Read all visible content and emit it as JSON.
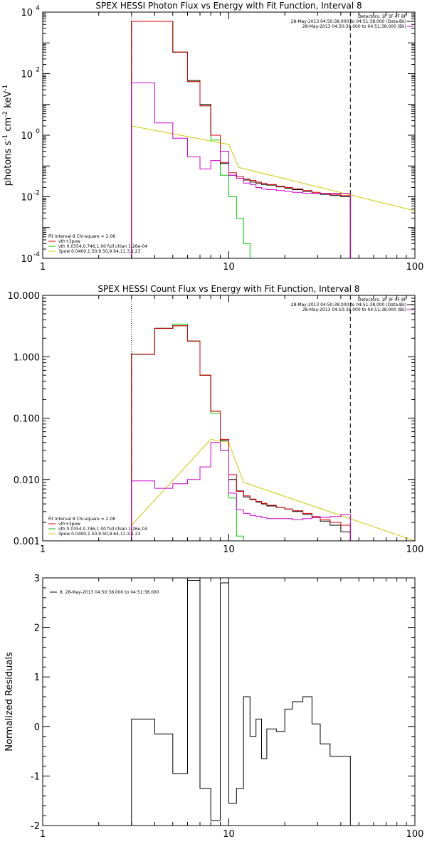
{
  "chart_data": [
    {
      "type": "line",
      "title": "SPEX HESSI Photon Flux vs Energy with Fit Function, Interval 8",
      "ylabel_parts": [
        "photons s",
        "-1",
        " cm",
        "-2",
        " keV",
        "-1"
      ],
      "xscale": "log",
      "yscale": "log",
      "xlim": [
        1,
        100
      ],
      "ylim": [
        0.0001,
        10000
      ],
      "x_ticks": [
        {
          "v": 1,
          "label": "1"
        },
        {
          "v": 10,
          "label": "10"
        },
        {
          "v": 100,
          "label": "100"
        }
      ],
      "y_ticks": [
        {
          "v": 0.0001,
          "base": "10",
          "exp": "-4"
        },
        {
          "v": 0.01,
          "base": "10",
          "exp": "-2"
        },
        {
          "v": 1,
          "base": "10",
          "exp": "0"
        },
        {
          "v": 100,
          "base": "10",
          "exp": "2"
        },
        {
          "v": 10000,
          "base": "10",
          "exp": "4"
        }
      ],
      "vlines": [
        {
          "x": 3.0,
          "style": "dotted"
        },
        {
          "x": 45,
          "style": "dashed"
        }
      ],
      "legend_top": [
        {
          "text": "Detectors: 1F 3F 4F 8F",
          "color": "#000000",
          "line": false
        },
        {
          "text": "28-May-2013 04:50:38.000 to 04:51:38.000 (Data-Bk)",
          "color": "#000000",
          "line": true
        },
        {
          "text": "28-May-2013 04:50:38.000 to 04:51:38.000 (Bk)",
          "color": "#d000d0",
          "line": true
        }
      ],
      "legend_bottom": [
        {
          "text": "Fit Interval 8   Chi-square = 2.06",
          "color": "#000000",
          "line": false
        },
        {
          "text": "vth+3pow",
          "color": "#dd0000",
          "line": true
        },
        {
          "text": "vth 0.0354,0.746,1.00  full chian 1.26e-04",
          "color": "#00cc00",
          "line": true
        },
        {
          "text": "3pow 0.0400,1.50,9.50,9.64,11.3,1.23",
          "color": "#cccc00",
          "line": true
        }
      ],
      "edges": [
        3.0,
        4.0,
        5.0,
        6.0,
        7.0,
        8.0,
        9.0,
        10.0,
        11.0,
        12.0,
        13.0,
        14.0,
        15.0,
        16.0,
        18.0,
        20.0,
        22.0,
        25.0,
        28.0,
        31.0,
        35.0,
        40.0,
        45.0
      ],
      "series": [
        {
          "name": "Data-Bk",
          "color": "#000000",
          "values": [
            5000,
            5000,
            500,
            60,
            10,
            1.0,
            0.12,
            0.05,
            0.04,
            0.035,
            0.03,
            0.028,
            0.025,
            0.024,
            0.021,
            0.019,
            0.017,
            0.015,
            0.013,
            0.012,
            0.011,
            0.01
          ]
        },
        {
          "name": "vth+3pow",
          "color": "#dd0000",
          "values": [
            5000,
            5000,
            500,
            55,
            9,
            1.0,
            0.13,
            0.06,
            0.045,
            0.038,
            0.034,
            0.03,
            0.027,
            0.025,
            0.022,
            0.02,
            0.018,
            0.016,
            0.014,
            0.013,
            0.012,
            0.011
          ]
        },
        {
          "name": "Bk",
          "color": "#d000d0",
          "values": [
            50,
            2.5,
            0.8,
            0.2,
            0.08,
            0.15,
            0.3,
            0.05,
            0.04,
            0.028,
            0.025,
            0.02,
            0.018,
            0.017,
            0.016,
            0.015,
            0.014,
            0.013,
            0.013,
            0.013,
            0.013,
            0.013
          ]
        }
      ],
      "series_smooth": [
        {
          "name": "vth",
          "color": "#00cc00",
          "edges": [
            3.0,
            4.0,
            5.0,
            6.0,
            7.0,
            8.0,
            9.0,
            10.0,
            11.0,
            12.0,
            13.0,
            14.0
          ],
          "values": [
            5000,
            5000,
            500,
            55,
            9,
            0.7,
            0.05,
            0.01,
            0.002,
            0.0003,
            5e-05
          ]
        },
        {
          "name": "3pow",
          "color": "#cccc00",
          "edges": [
            3.0,
            100.0
          ],
          "curve": "powerlaw",
          "points": [
            [
              3.0,
              2.0
            ],
            [
              10.0,
              0.5
            ],
            [
              11.3,
              0.09
            ],
            [
              100,
              0.0035
            ]
          ]
        }
      ]
    },
    {
      "type": "line",
      "title": "SPEX HESSI Count Flux vs Energy with Fit Function, Interval 8",
      "ylabel_parts": [],
      "xscale": "log",
      "yscale": "log",
      "xlim": [
        1,
        100
      ],
      "ylim": [
        0.001,
        10
      ],
      "x_ticks": [
        {
          "v": 1,
          "label": "1"
        },
        {
          "v": 10,
          "label": "10"
        },
        {
          "v": 100,
          "label": "100"
        }
      ],
      "y_ticks": [
        {
          "v": 0.001,
          "label": "0.001"
        },
        {
          "v": 0.01,
          "label": "0.010"
        },
        {
          "v": 0.1,
          "label": "0.100"
        },
        {
          "v": 1,
          "label": "1.000"
        },
        {
          "v": 10,
          "label": "10.000"
        }
      ],
      "vlines": [
        {
          "x": 3.0,
          "style": "dotted"
        },
        {
          "x": 45,
          "style": "dashed"
        }
      ],
      "legend_top": [
        {
          "text": "Detectors: 1F 3F 4F 8F",
          "color": "#000000",
          "line": false
        },
        {
          "text": "28-May-2013 04:50:38.000 to 04:51:38.000 (Data-Bk)",
          "color": "#000000",
          "line": true
        },
        {
          "text": "28-May-2013 04:50:38.000 to 04:51:38.000 (Bk)",
          "color": "#d000d0",
          "line": true
        }
      ],
      "legend_bottom": [
        {
          "text": "Fit Interval 8   Chi-square = 2.06",
          "color": "#000000",
          "line": false
        },
        {
          "text": "vth+3pow",
          "color": "#dd0000",
          "line": true
        },
        {
          "text": "vth 0.0354,0.746,1.00  full chian 1.26e-04",
          "color": "#00cc00",
          "line": true
        },
        {
          "text": "3pow 0.0400,1.50,9.50,9.64,11.3,1.23",
          "color": "#cccc00",
          "line": true
        }
      ],
      "edges": [
        3.0,
        4.0,
        5.0,
        6.0,
        7.0,
        8.0,
        9.0,
        10.0,
        11.0,
        12.0,
        13.0,
        14.0,
        15.0,
        16.0,
        18.0,
        20.0,
        22.0,
        25.0,
        28.0,
        31.0,
        35.0,
        40.0,
        45.0
      ],
      "series": [
        {
          "name": "Data-Bk",
          "color": "#000000",
          "values": [
            1.1,
            2.9,
            3.2,
            1.8,
            0.5,
            0.13,
            0.043,
            0.01,
            0.0065,
            0.0052,
            0.0047,
            0.0043,
            0.004,
            0.0037,
            0.0035,
            0.0033,
            0.003,
            0.0027,
            0.0024,
            0.0021,
            0.0018,
            0.0014
          ]
        },
        {
          "name": "vth+3pow",
          "color": "#dd0000",
          "values": [
            1.1,
            2.9,
            3.2,
            1.8,
            0.5,
            0.13,
            0.045,
            0.012,
            0.0064,
            0.0054,
            0.0048,
            0.0044,
            0.0041,
            0.0038,
            0.0035,
            0.0033,
            0.0031,
            0.0028,
            0.0025,
            0.0022,
            0.002,
            0.0018
          ]
        },
        {
          "name": "Bk",
          "color": "#d000d0",
          "values": [
            0.0095,
            0.0072,
            0.0085,
            0.01,
            0.016,
            0.04,
            0.03,
            0.006,
            0.0032,
            0.0028,
            0.0026,
            0.0025,
            0.0024,
            0.0023,
            0.0023,
            0.0023,
            0.0022,
            0.0023,
            0.0024,
            0.0024,
            0.0025,
            0.0027
          ]
        }
      ],
      "series_smooth": [
        {
          "name": "vth",
          "color": "#00cc00",
          "edges": [
            3.0,
            4.0,
            5.0,
            6.0,
            7.0,
            8.0,
            9.0,
            10.0,
            11.0,
            12.0
          ],
          "values": [
            1.1,
            2.9,
            3.4,
            1.8,
            0.5,
            0.12,
            0.03,
            0.005,
            0.0012
          ]
        },
        {
          "name": "3pow",
          "color": "#cccc00",
          "edges": [
            3.0,
            100.0
          ],
          "curve": "powerlaw",
          "points": [
            [
              3.0,
              0.0018
            ],
            [
              8.0,
              0.045
            ],
            [
              10.0,
              0.04
            ],
            [
              12,
              0.009
            ],
            [
              100,
              0.001
            ]
          ]
        }
      ]
    },
    {
      "type": "line",
      "title": "",
      "ylabel": "Normalized Residuals",
      "xscale": "log",
      "yscale": "linear",
      "xlim": [
        1,
        100
      ],
      "ylim": [
        -2,
        3
      ],
      "x_ticks": [
        {
          "v": 1,
          "label": "1"
        },
        {
          "v": 10,
          "label": "10"
        },
        {
          "v": 100,
          "label": "100"
        }
      ],
      "y_ticks": [
        {
          "v": -2,
          "label": "-2"
        },
        {
          "v": -1,
          "label": "-1"
        },
        {
          "v": 0,
          "label": "0"
        },
        {
          "v": 1,
          "label": "1"
        },
        {
          "v": 2,
          "label": "2"
        },
        {
          "v": 3,
          "label": "3"
        }
      ],
      "legend_top": [
        {
          "text": "8. 28-May-2013 04:50:38.000 to 04:51:38.000",
          "color": "#000000",
          "line": true
        }
      ],
      "edges": [
        3.0,
        4.0,
        5.0,
        6.0,
        7.0,
        8.0,
        9.0,
        10.0,
        11.0,
        12.0,
        13.0,
        14.0,
        15.0,
        16.0,
        18.0,
        20.0,
        22.0,
        25.0,
        28.0,
        31.0,
        35.0,
        40.0,
        45.0
      ],
      "series": [
        {
          "name": "residuals",
          "color": "#000000",
          "values": [
            0.15,
            -0.15,
            -0.95,
            2.95,
            -1.25,
            -1.9,
            2.9,
            -1.55,
            -1.25,
            0.6,
            -0.2,
            0.15,
            -0.65,
            -0.05,
            -0.1,
            0.35,
            0.5,
            0.6,
            0.05,
            -0.35,
            -0.6,
            -0.6
          ]
        }
      ]
    }
  ]
}
